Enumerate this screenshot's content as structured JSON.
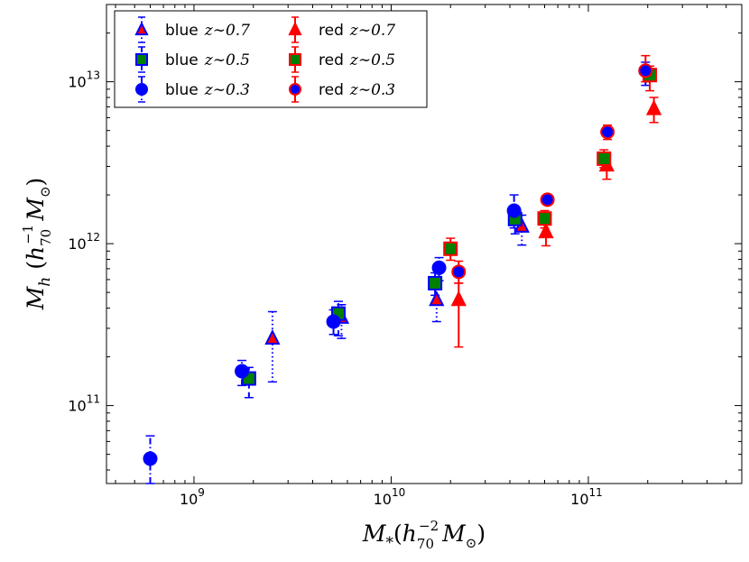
{
  "chart_data": {
    "type": "scatter",
    "title": "",
    "xlabel": "M_*(h_70^-2 M_⊙)",
    "ylabel": "M_h (h_70^-1 M_⊙)",
    "xscale": "log",
    "yscale": "log",
    "xlim": [
      360000000.0,
      600000000000.0
    ],
    "ylim": [
      33000000000.0,
      30000000000000.0
    ],
    "legend_location": "top-left",
    "x_tick_labels": [
      {
        "value": 1000000000.0,
        "base": "10",
        "exp": "9"
      },
      {
        "value": 10000000000.0,
        "base": "10",
        "exp": "10"
      },
      {
        "value": 100000000000.0,
        "base": "10",
        "exp": "11"
      }
    ],
    "y_tick_labels": [
      {
        "value": 100000000000.0,
        "base": "10",
        "exp": "11"
      },
      {
        "value": 1000000000000.0,
        "base": "10",
        "exp": "12"
      },
      {
        "value": 10000000000000.0,
        "base": "10",
        "exp": "13"
      }
    ],
    "axis_titles": {
      "x": {
        "main": "M",
        "sub": "*",
        "paren_open": "(",
        "h": "h",
        "h_sub": "70",
        "h_sup": "−2",
        "m2": "M",
        "m2_sub": "⊙",
        "paren_close": ")"
      },
      "y": {
        "main": "M",
        "sub": "h",
        "paren_open": "(",
        "h": "h",
        "h_sub": "70",
        "h_sup": "−1",
        "m2": "M",
        "m2_sub": "⊙",
        "paren_close": ")"
      }
    },
    "colors": {
      "blue": "#0000ff",
      "red": "#ff0000",
      "green": "#008000"
    },
    "series": [
      {
        "name": "blue z~0.7",
        "label": "blue",
        "math": "z∼0.7",
        "marker": "triangle",
        "face": "#ff0000",
        "edge": "#0000ff",
        "error_color": "#0000ff",
        "error_style": "dotted",
        "points": [
          {
            "x": 2500000000.0,
            "y": 260000000000.0,
            "lo": 140000000000.0,
            "hi": 380000000000.0
          },
          {
            "x": 5600000000.0,
            "y": 350000000000.0,
            "lo": 260000000000.0,
            "hi": 420000000000.0
          },
          {
            "x": 17000000000.0,
            "y": 450000000000.0,
            "lo": 330000000000.0,
            "hi": 530000000000.0
          },
          {
            "x": 46000000000.0,
            "y": 1280000000000.0,
            "lo": 980000000000.0,
            "hi": 1500000000000.0
          }
        ]
      },
      {
        "name": "blue z~0.5",
        "label": "blue",
        "math": "z∼0.5",
        "marker": "square",
        "face": "#008000",
        "edge": "#0000ff",
        "error_color": "#0000ff",
        "error_style": "dashed",
        "points": [
          {
            "x": 1900000000.0,
            "y": 147000000000.0,
            "lo": 112000000000.0,
            "hi": 172000000000.0
          },
          {
            "x": 5400000000.0,
            "y": 370000000000.0,
            "lo": 270000000000.0,
            "hi": 440000000000.0
          },
          {
            "x": 16700000000.0,
            "y": 570000000000.0,
            "lo": 480000000000.0,
            "hi": 660000000000.0
          },
          {
            "x": 42500000000.0,
            "y": 1420000000000.0,
            "lo": 1150000000000.0,
            "hi": 1680000000000.0
          }
        ]
      },
      {
        "name": "blue z~0.3",
        "label": "blue",
        "math": "z∼0.3",
        "marker": "circle",
        "face": "#0000ff",
        "edge": "#0000ff",
        "error_color": "#0000ff",
        "error_style": "dashdot",
        "points": [
          {
            "x": 600000000.0,
            "y": 47000000000.0,
            "lo": 33000000000.0,
            "hi": 65000000000.0
          },
          {
            "x": 1750000000.0,
            "y": 163000000000.0,
            "lo": 133000000000.0,
            "hi": 190000000000.0
          },
          {
            "x": 5100000000.0,
            "y": 330000000000.0,
            "lo": 275000000000.0,
            "hi": 390000000000.0
          },
          {
            "x": 17500000000.0,
            "y": 710000000000.0,
            "lo": 590000000000.0,
            "hi": 820000000000.0
          },
          {
            "x": 42000000000.0,
            "y": 1600000000000.0,
            "lo": 1250000000000.0,
            "hi": 2000000000000.0
          },
          {
            "x": 195000000000.0,
            "y": 11700000000000.0,
            "lo": 9500000000000.0,
            "hi": 13200000000000.0
          }
        ]
      },
      {
        "name": "red z~0.7",
        "label": "red",
        "math": "z∼0.7",
        "marker": "triangle",
        "face": "#ff0000",
        "edge": "#ff0000",
        "error_color": "#ff0000",
        "error_style": "solid",
        "points": [
          {
            "x": 22000000000.0,
            "y": 450000000000.0,
            "lo": 230000000000.0,
            "hi": 570000000000.0
          },
          {
            "x": 61000000000.0,
            "y": 1180000000000.0,
            "lo": 970000000000.0,
            "hi": 1400000000000.0
          },
          {
            "x": 124000000000.0,
            "y": 3050000000000.0,
            "lo": 2500000000000.0,
            "hi": 3600000000000.0
          },
          {
            "x": 215000000000.0,
            "y": 6800000000000.0,
            "lo": 5600000000000.0,
            "hi": 8000000000000.0
          }
        ]
      },
      {
        "name": "red z~0.5",
        "label": "red",
        "math": "z∼0.5",
        "marker": "square",
        "face": "#008000",
        "edge": "#ff0000",
        "error_color": "#ff0000",
        "error_style": "solid",
        "points": [
          {
            "x": 20000000000.0,
            "y": 930000000000.0,
            "lo": 790000000000.0,
            "hi": 1080000000000.0
          },
          {
            "x": 60000000000.0,
            "y": 1430000000000.0,
            "lo": 1250000000000.0,
            "hi": 1600000000000.0
          },
          {
            "x": 120000000000.0,
            "y": 3350000000000.0,
            "lo": 2950000000000.0,
            "hi": 3800000000000.0
          },
          {
            "x": 205000000000.0,
            "y": 11000000000000.0,
            "lo": 8800000000000.0,
            "hi": 12500000000000.0
          }
        ]
      },
      {
        "name": "red z~0.3",
        "label": "red",
        "math": "z∼0.3",
        "marker": "circle",
        "face": "#0000ff",
        "edge": "#ff0000",
        "error_color": "#ff0000",
        "error_style": "solid",
        "points": [
          {
            "x": 22000000000.0,
            "y": 670000000000.0,
            "lo": 570000000000.0,
            "hi": 780000000000.0
          },
          {
            "x": 62000000000.0,
            "y": 1870000000000.0,
            "lo": 1750000000000.0,
            "hi": 2000000000000.0
          },
          {
            "x": 125000000000.0,
            "y": 4900000000000.0,
            "lo": 4400000000000.0,
            "hi": 5400000000000.0
          },
          {
            "x": 195000000000.0,
            "y": 11700000000000.0,
            "lo": 10000000000000.0,
            "hi": 14500000000000.0
          }
        ]
      }
    ]
  }
}
